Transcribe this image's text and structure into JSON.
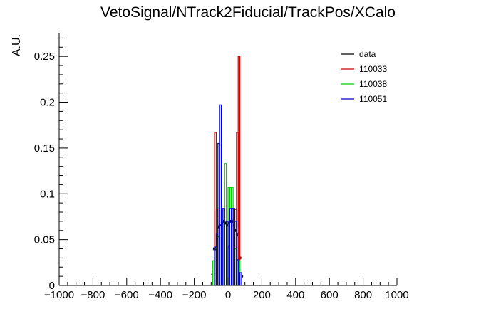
{
  "chart_data": {
    "type": "step-histogram",
    "title": "VetoSignal/NTrack2Fiducial/TrackPos/XCalo",
    "xlabel": "",
    "ylabel": "A.U.",
    "xlim": [
      -1000,
      1000
    ],
    "ylim": [
      0,
      0.275
    ],
    "x_ticks": [
      -1000,
      -800,
      -600,
      -400,
      -200,
      0,
      200,
      400,
      600,
      800,
      1000
    ],
    "x_tick_labels": [
      "−1000",
      "−800",
      "−600",
      "−400",
      "−200",
      "0",
      "200",
      "400",
      "600",
      "800",
      "1000"
    ],
    "y_ticks": [
      0,
      0.05,
      0.1,
      0.15,
      0.2,
      0.25
    ],
    "y_tick_labels": [
      "0",
      "0.05",
      "0.1",
      "0.15",
      "0.2",
      "0.25"
    ],
    "grid": false,
    "legend_position": "top-right",
    "bin_width": 10,
    "series": [
      {
        "name": "data",
        "color": "#000000",
        "style": "markers",
        "bins": [
          {
            "x": -95,
            "y": 0.012
          },
          {
            "x": -85,
            "y": 0.04
          },
          {
            "x": -75,
            "y": 0.04
          },
          {
            "x": -65,
            "y": 0.06
          },
          {
            "x": -55,
            "y": 0.064
          },
          {
            "x": -45,
            "y": 0.066
          },
          {
            "x": -35,
            "y": 0.068
          },
          {
            "x": -25,
            "y": 0.07
          },
          {
            "x": -15,
            "y": 0.068
          },
          {
            "x": -5,
            "y": 0.066
          },
          {
            "x": 5,
            "y": 0.068
          },
          {
            "x": 15,
            "y": 0.07
          },
          {
            "x": 25,
            "y": 0.07
          },
          {
            "x": 35,
            "y": 0.066
          },
          {
            "x": 45,
            "y": 0.06
          },
          {
            "x": 55,
            "y": 0.055
          },
          {
            "x": 65,
            "y": 0.04
          },
          {
            "x": 75,
            "y": 0.03
          },
          {
            "x": 85,
            "y": 0.01
          }
        ]
      },
      {
        "name": "110033",
        "color": "#cc0000",
        "style": "step",
        "bins": [
          {
            "x0": -90,
            "x1": -80,
            "y": 0.0
          },
          {
            "x0": -80,
            "x1": -70,
            "y": 0.167
          },
          {
            "x0": -70,
            "x1": -60,
            "y": 0.083
          },
          {
            "x0": -60,
            "x1": -50,
            "y": 0.0
          },
          {
            "x0": -50,
            "x1": -40,
            "y": 0.0
          },
          {
            "x0": -40,
            "x1": -30,
            "y": 0.0
          },
          {
            "x0": -30,
            "x1": -20,
            "y": 0.0
          },
          {
            "x0": -20,
            "x1": -10,
            "y": 0.0
          },
          {
            "x0": -10,
            "x1": 0,
            "y": 0.0
          },
          {
            "x0": 0,
            "x1": 10,
            "y": 0.0
          },
          {
            "x0": 10,
            "x1": 20,
            "y": 0.0
          },
          {
            "x0": 20,
            "x1": 30,
            "y": 0.0
          },
          {
            "x0": 30,
            "x1": 40,
            "y": 0.0
          },
          {
            "x0": 40,
            "x1": 50,
            "y": 0.083
          },
          {
            "x0": 50,
            "x1": 60,
            "y": 0.167
          },
          {
            "x0": 60,
            "x1": 70,
            "y": 0.25
          },
          {
            "x0": 70,
            "x1": 80,
            "y": 0.0
          },
          {
            "x0": 80,
            "x1": 90,
            "y": 0.0
          }
        ]
      },
      {
        "name": "110038",
        "color": "#00cc00",
        "style": "step",
        "bins": [
          {
            "x0": -90,
            "x1": -80,
            "y": 0.027
          },
          {
            "x0": -80,
            "x1": -70,
            "y": 0.04
          },
          {
            "x0": -70,
            "x1": -60,
            "y": 0.0
          },
          {
            "x0": -60,
            "x1": -50,
            "y": 0.053
          },
          {
            "x0": -50,
            "x1": -40,
            "y": 0.067
          },
          {
            "x0": -40,
            "x1": -30,
            "y": 0.067
          },
          {
            "x0": -30,
            "x1": -20,
            "y": 0.0
          },
          {
            "x0": -20,
            "x1": -10,
            "y": 0.133
          },
          {
            "x0": -10,
            "x1": 0,
            "y": 0.0
          },
          {
            "x0": 0,
            "x1": 10,
            "y": 0.107
          },
          {
            "x0": 10,
            "x1": 20,
            "y": 0.107
          },
          {
            "x0": 20,
            "x1": 30,
            "y": 0.107
          },
          {
            "x0": 30,
            "x1": 40,
            "y": 0.0
          },
          {
            "x0": 40,
            "x1": 50,
            "y": 0.04
          },
          {
            "x0": 50,
            "x1": 60,
            "y": 0.027
          },
          {
            "x0": 60,
            "x1": 70,
            "y": 0.027
          },
          {
            "x0": 70,
            "x1": 80,
            "y": 0.0
          },
          {
            "x0": 80,
            "x1": 90,
            "y": 0.0
          }
        ]
      },
      {
        "name": "110051",
        "color": "#0000cc",
        "style": "step",
        "bins": [
          {
            "x0": -90,
            "x1": -80,
            "y": 0.0
          },
          {
            "x0": -80,
            "x1": -70,
            "y": 0.042
          },
          {
            "x0": -70,
            "x1": -60,
            "y": 0.056
          },
          {
            "x0": -60,
            "x1": -50,
            "y": 0.155
          },
          {
            "x0": -50,
            "x1": -40,
            "y": 0.197
          },
          {
            "x0": -40,
            "x1": -30,
            "y": 0.084
          },
          {
            "x0": -30,
            "x1": -20,
            "y": 0.084
          },
          {
            "x0": -20,
            "x1": -10,
            "y": 0.0
          },
          {
            "x0": -10,
            "x1": 0,
            "y": 0.07
          },
          {
            "x0": 0,
            "x1": 10,
            "y": 0.042
          },
          {
            "x0": 10,
            "x1": 20,
            "y": 0.084
          },
          {
            "x0": 20,
            "x1": 30,
            "y": 0.084
          },
          {
            "x0": 30,
            "x1": 40,
            "y": 0.084
          },
          {
            "x0": 40,
            "x1": 50,
            "y": 0.07
          },
          {
            "x0": 50,
            "x1": 60,
            "y": 0.028
          },
          {
            "x0": 60,
            "x1": 70,
            "y": 0.0
          },
          {
            "x0": 70,
            "x1": 80,
            "y": 0.014
          },
          {
            "x0": 80,
            "x1": 90,
            "y": 0.0
          }
        ]
      }
    ]
  }
}
